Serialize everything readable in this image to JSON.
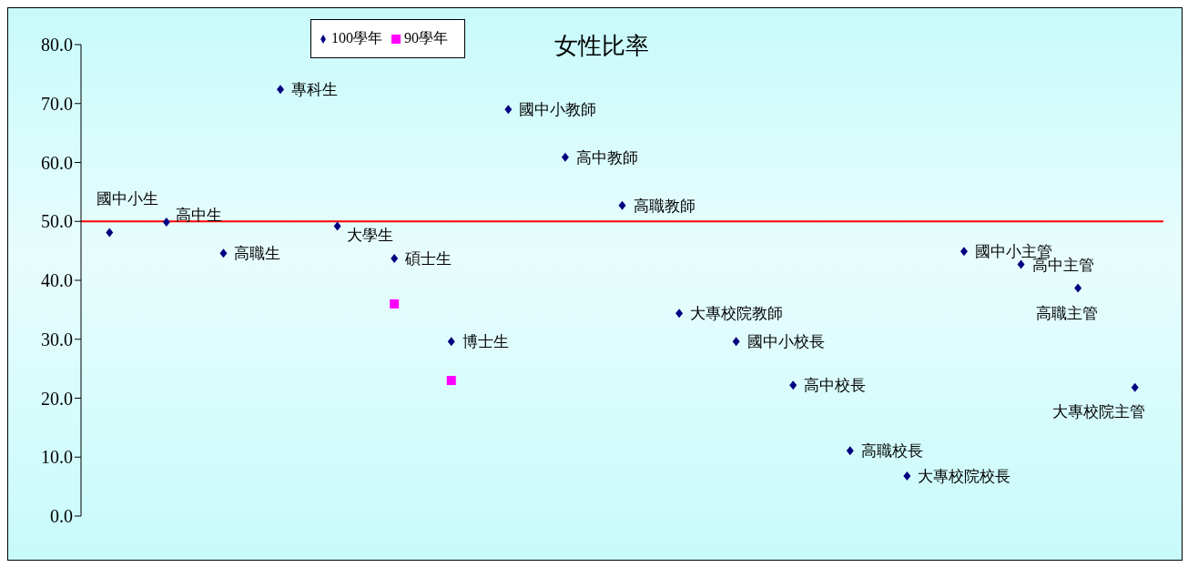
{
  "chart_data": {
    "type": "scatter",
    "title": "女性比率",
    "categories": [
      null,
      null,
      null,
      null,
      null,
      null,
      null,
      null,
      null,
      null,
      null,
      null,
      null,
      null,
      null,
      null,
      null,
      null,
      null
    ],
    "series": [
      {
        "name": "100學年",
        "color": "#000080",
        "marker": "diamond",
        "values": [
          48.1,
          49.9,
          44.6,
          72.4,
          49.2,
          43.7,
          29.6,
          69.0,
          60.9,
          52.7,
          34.4,
          29.6,
          22.2,
          11.1,
          6.8,
          44.9,
          42.7,
          38.7,
          21.8
        ]
      },
      {
        "name": "90學年",
        "color": "#ff00ff",
        "marker": "square",
        "values": [
          null,
          null,
          null,
          null,
          null,
          36.0,
          23.0,
          null,
          null,
          null,
          null,
          null,
          null,
          null,
          null,
          null,
          null,
          null,
          null
        ]
      }
    ],
    "annotations": [
      "國中小生",
      "高中生",
      "高職生",
      "專科生",
      "大學生",
      "碩士生",
      "博士生",
      "國中小教師",
      "高中教師",
      "高職教師",
      "大專校院教師",
      "國中小校長",
      "高中校長",
      "高職校長",
      "大專校院校長",
      "國中小主管",
      "高中主管",
      "高職主管",
      "大專校院主管"
    ],
    "ylim": [
      0,
      80
    ],
    "yticks": [
      {
        "value": 0,
        "label": "0.0"
      },
      {
        "value": 10,
        "label": "10.0"
      },
      {
        "value": 20,
        "label": "20.0"
      },
      {
        "value": 30,
        "label": "30.0"
      },
      {
        "value": 40,
        "label": "40.0"
      },
      {
        "value": 50,
        "label": "50.0"
      },
      {
        "value": 60,
        "label": "60.0"
      },
      {
        "value": 70,
        "label": "70.0"
      },
      {
        "value": 80,
        "label": "80.0"
      }
    ],
    "tick_labels": "y",
    "grid": false,
    "legend": "top left",
    "ref_lines": [
      {
        "axis": "y",
        "value": 50,
        "color": "#ff0000"
      }
    ]
  }
}
